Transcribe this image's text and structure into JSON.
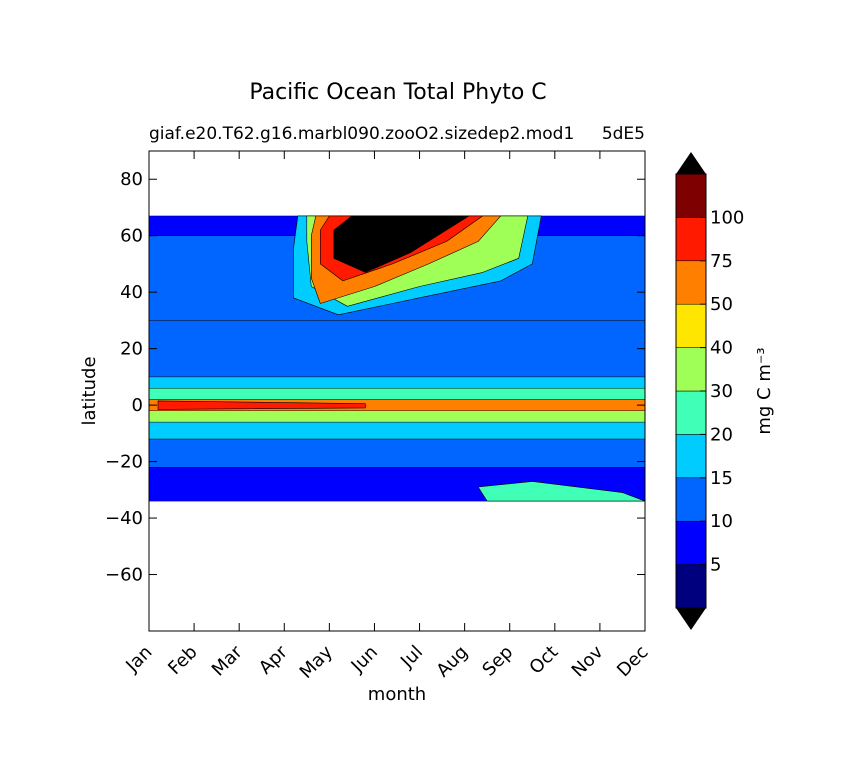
{
  "chart_data": {
    "type": "heatmap",
    "title": "Pacific Ocean Total Phyto C",
    "subtitle_left": "giaf.e20.T62.g16.marbl090.zooO2.sizedep2.mod1",
    "subtitle_right": "5dE5",
    "xlabel": "month",
    "ylabel": "latitude",
    "x_ticks": [
      "Jan",
      "Feb",
      "Mar",
      "Apr",
      "May",
      "Jun",
      "Jul",
      "Aug",
      "Sep",
      "Oct",
      "Nov",
      "Dec"
    ],
    "y_ticks": [
      80,
      60,
      40,
      20,
      0,
      -20,
      -40,
      -60
    ],
    "ylim": [
      -80,
      90
    ],
    "data_lat_range": [
      -34,
      67
    ],
    "grid": false,
    "colorbar": {
      "label": "mg C m⁻³",
      "levels": [
        0,
        5,
        10,
        15,
        20,
        30,
        40,
        50,
        75,
        100
      ],
      "tick_labels": [
        "5",
        "10",
        "15",
        "20",
        "30",
        "40",
        "50",
        "75",
        "100"
      ],
      "colors": [
        "#00007f",
        "#0000ff",
        "#0066ff",
        "#00ccff",
        "#40ffb7",
        "#a0ff56",
        "#ffe600",
        "#ff7f00",
        "#ff1a00",
        "#7f0000"
      ],
      "extend": "both",
      "under_color": "#000000",
      "over_color": "#000000"
    },
    "bands": [
      {
        "lat": [
          -34,
          -22
        ],
        "value": 7
      },
      {
        "lat": [
          -22,
          -12
        ],
        "value": 11
      },
      {
        "lat": [
          -12,
          -6
        ],
        "value": 17
      },
      {
        "lat": [
          -6,
          -2
        ],
        "value": 33
      },
      {
        "lat": [
          -2,
          2
        ],
        "value": 60
      },
      {
        "lat": [
          2,
          6
        ],
        "value": 25
      },
      {
        "lat": [
          6,
          10
        ],
        "value": 17
      },
      {
        "lat": [
          10,
          30
        ],
        "value": 11
      },
      {
        "lat": [
          30,
          60
        ],
        "value": 11
      },
      {
        "lat": [
          60,
          67
        ],
        "value": 7
      }
    ],
    "features": [
      {
        "name": "north-bloom-outer",
        "value": 18,
        "points": [
          [
            3.3,
            67
          ],
          [
            8.7,
            67
          ],
          [
            8.5,
            50
          ],
          [
            7.8,
            44
          ],
          [
            6,
            38
          ],
          [
            4.2,
            32
          ],
          [
            3.2,
            38
          ],
          [
            3.2,
            55
          ]
        ]
      },
      {
        "name": "north-bloom-30",
        "value": 35,
        "points": [
          [
            3.5,
            67
          ],
          [
            8.4,
            67
          ],
          [
            8.2,
            52
          ],
          [
            7.4,
            47
          ],
          [
            6,
            42
          ],
          [
            4.4,
            35
          ],
          [
            3.6,
            42
          ],
          [
            3.5,
            58
          ]
        ]
      },
      {
        "name": "north-bloom-50",
        "value": 60,
        "points": [
          [
            3.7,
            67
          ],
          [
            7.8,
            67
          ],
          [
            7.3,
            58
          ],
          [
            6.2,
            50
          ],
          [
            5,
            42
          ],
          [
            3.8,
            36
          ],
          [
            3.6,
            45
          ],
          [
            3.6,
            60
          ]
        ]
      },
      {
        "name": "north-bloom-75",
        "value": 85,
        "points": [
          [
            4,
            67
          ],
          [
            7.4,
            67
          ],
          [
            6.6,
            58
          ],
          [
            5.4,
            50
          ],
          [
            4.3,
            44
          ],
          [
            3.8,
            50
          ],
          [
            3.8,
            62
          ]
        ]
      },
      {
        "name": "north-bloom-core",
        "value": 130,
        "points": [
          [
            4.5,
            67
          ],
          [
            7.1,
            67
          ],
          [
            5.8,
            54
          ],
          [
            4.8,
            47
          ],
          [
            4.1,
            52
          ],
          [
            4.1,
            62
          ]
        ]
      },
      {
        "name": "equator-core",
        "value": 85,
        "points": [
          [
            0.2,
            1.5
          ],
          [
            4.8,
            0.5
          ],
          [
            4.8,
            -1
          ],
          [
            0.2,
            -1.5
          ]
        ]
      },
      {
        "name": "south-tongue",
        "value": 25,
        "points": [
          [
            7.5,
            -34
          ],
          [
            11,
            -34
          ],
          [
            10.5,
            -31
          ],
          [
            8.5,
            -27
          ],
          [
            7.3,
            -29
          ]
        ]
      }
    ]
  }
}
